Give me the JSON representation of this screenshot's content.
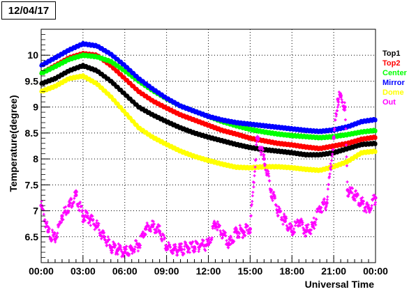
{
  "header": {
    "date": "12/04/17"
  },
  "chart_data": {
    "type": "scatter",
    "xlabel": "Universal Time",
    "ylabel": "Temperature(degree)",
    "xlim": [
      0,
      24
    ],
    "ylim": [
      6.0,
      10.5
    ],
    "grid": true,
    "legend_position": "right",
    "x_ticks": [
      {
        "value": 0,
        "label": "00:00"
      },
      {
        "value": 3,
        "label": "03:00"
      },
      {
        "value": 6,
        "label": "06:00"
      },
      {
        "value": 9,
        "label": "09:00"
      },
      {
        "value": 12,
        "label": "12:00"
      },
      {
        "value": 15,
        "label": "15:00"
      },
      {
        "value": 18,
        "label": "18:00"
      },
      {
        "value": 21,
        "label": "21:00"
      },
      {
        "value": 24,
        "label": "00:00"
      }
    ],
    "y_ticks": [
      {
        "value": 6.5,
        "label": "6.5"
      },
      {
        "value": 7,
        "label": "7"
      },
      {
        "value": 7.5,
        "label": "7.5"
      },
      {
        "value": 8,
        "label": "8"
      },
      {
        "value": 8.5,
        "label": "8.5"
      },
      {
        "value": 9,
        "label": "9"
      },
      {
        "value": 9.5,
        "label": "9.5"
      },
      {
        "value": 10,
        "label": "10"
      }
    ],
    "series": [
      {
        "name": "Top1",
        "color": "#000000",
        "x": [
          0,
          1,
          2,
          3,
          4,
          5,
          6,
          7,
          8,
          9,
          10,
          11,
          12,
          13,
          14,
          15,
          16,
          17,
          18,
          19,
          20,
          21,
          22,
          23,
          24
        ],
        "y": [
          9.45,
          9.55,
          9.7,
          9.8,
          9.7,
          9.5,
          9.25,
          9.0,
          8.85,
          8.72,
          8.6,
          8.5,
          8.42,
          8.35,
          8.28,
          8.22,
          8.18,
          8.15,
          8.12,
          8.08,
          8.08,
          8.12,
          8.2,
          8.28,
          8.3
        ]
      },
      {
        "name": "Top2",
        "color": "#ff0000",
        "x": [
          0,
          1,
          2,
          3,
          4,
          5,
          6,
          7,
          8,
          9,
          10,
          11,
          12,
          13,
          14,
          15,
          16,
          17,
          18,
          19,
          20,
          21,
          22,
          23,
          24
        ],
        "y": [
          9.65,
          9.8,
          9.95,
          10.03,
          10.0,
          9.8,
          9.55,
          9.3,
          9.12,
          8.98,
          8.85,
          8.75,
          8.65,
          8.55,
          8.48,
          8.4,
          8.35,
          8.3,
          8.27,
          8.23,
          8.2,
          8.25,
          8.3,
          8.38,
          8.42
        ]
      },
      {
        "name": "Center",
        "color": "#00ff00",
        "x": [
          0,
          1,
          2,
          3,
          4,
          5,
          6,
          7,
          8,
          9,
          10,
          11,
          12,
          13,
          14,
          15,
          16,
          17,
          18,
          19,
          20,
          21,
          22,
          23,
          24
        ],
        "y": [
          9.65,
          9.78,
          9.92,
          10.0,
          9.97,
          9.88,
          9.7,
          9.5,
          9.32,
          9.16,
          9.02,
          8.92,
          8.82,
          8.72,
          8.64,
          8.57,
          8.52,
          8.48,
          8.45,
          8.43,
          8.41,
          8.43,
          8.47,
          8.52,
          8.55
        ]
      },
      {
        "name": "Mirror",
        "color": "#0000ff",
        "x": [
          0,
          1,
          2,
          3,
          4,
          5,
          6,
          7,
          8,
          9,
          10,
          11,
          12,
          13,
          14,
          15,
          16,
          17,
          18,
          19,
          20,
          21,
          22,
          23,
          24
        ],
        "y": [
          9.8,
          9.95,
          10.1,
          10.22,
          10.18,
          10.02,
          9.8,
          9.55,
          9.35,
          9.17,
          9.02,
          8.92,
          8.82,
          8.75,
          8.7,
          8.67,
          8.64,
          8.61,
          8.58,
          8.55,
          8.53,
          8.56,
          8.62,
          8.72,
          8.76
        ]
      },
      {
        "name": "Dome",
        "color": "#ffff00",
        "x": [
          0,
          1,
          2,
          3,
          4,
          5,
          6,
          7,
          8,
          9,
          10,
          11,
          12,
          13,
          14,
          15,
          16,
          17,
          18,
          19,
          20,
          21,
          22,
          23,
          24
        ],
        "y": [
          9.3,
          9.4,
          9.55,
          9.6,
          9.45,
          9.2,
          8.9,
          8.6,
          8.42,
          8.28,
          8.15,
          8.05,
          7.97,
          7.9,
          7.84,
          7.83,
          7.85,
          7.85,
          7.83,
          7.8,
          7.78,
          7.85,
          7.95,
          8.12,
          8.15
        ]
      },
      {
        "name": "Out",
        "color": "#ff00ff",
        "x": [
          0,
          0.5,
          1,
          1.5,
          2,
          2.5,
          3,
          3.5,
          4,
          4.5,
          5,
          5.5,
          6,
          6.5,
          7,
          7.5,
          8,
          8.5,
          9,
          9.5,
          10,
          10.5,
          11,
          11.5,
          12,
          12.5,
          13,
          13.5,
          14,
          14.5,
          15,
          15.5,
          16,
          16.5,
          17,
          17.5,
          18,
          18.5,
          19,
          19.5,
          20,
          20.5,
          21,
          21.3,
          21.5,
          21.8,
          22,
          22.5,
          23,
          23.5,
          24
        ],
        "y": [
          7.1,
          6.6,
          6.45,
          6.9,
          7.1,
          7.3,
          6.9,
          6.85,
          6.7,
          6.5,
          6.3,
          6.25,
          6.2,
          6.25,
          6.35,
          6.65,
          6.7,
          6.6,
          6.3,
          6.25,
          6.25,
          6.3,
          6.3,
          6.35,
          6.35,
          6.75,
          6.55,
          6.35,
          6.6,
          6.6,
          6.65,
          8.4,
          8.0,
          7.4,
          7.0,
          6.8,
          6.6,
          6.8,
          6.6,
          6.7,
          7.05,
          7.15,
          8.4,
          9.15,
          9.2,
          9.0,
          7.4,
          7.3,
          7.15,
          7.05,
          7.25
        ]
      }
    ]
  }
}
